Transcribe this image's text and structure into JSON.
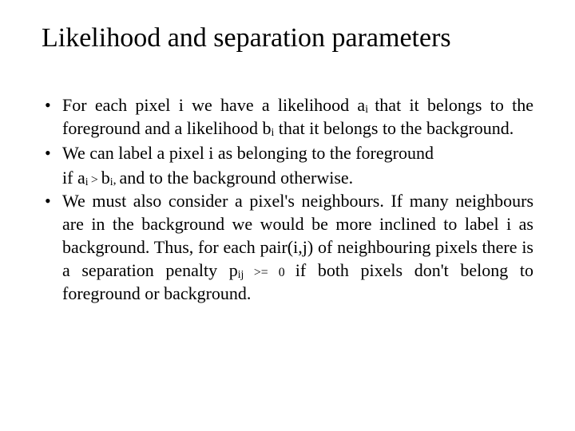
{
  "title": "Likelihood and separation parameters",
  "typography": {
    "title_fontsize_pt": 26,
    "body_fontsize_pt": 17,
    "font_family": "Times New Roman / Georgia serif",
    "text_color": "#000000",
    "background_color": "#ffffff",
    "text_align_body": "justify"
  },
  "bullets": [
    {
      "pre1": "For each pixel i we have a likelihood a",
      "sub1": "i ",
      "mid1": "that it belongs to the foreground and a likelihood b",
      "sub2": "i",
      "post1": " that it belongs to the background."
    },
    {
      "line1": "We can label a pixel i as belonging to the foreground",
      "line2_pre": "if a",
      "line2_sub1": "i ",
      "line2_gt": "> ",
      "line2_b": "b",
      "line2_sub2": "i",
      "line2_comma": ", ",
      "line2_post": "and to the background otherwise."
    },
    {
      "pre": "We must also consider a pixel's neighbours. If many neighbours are in the background we would be more inclined to label i as background. Thus, for each pair(i,j) of neighbouring pixels there is a separation penalty p",
      "sub": "ij ",
      "ge": ">= 0 ",
      "post": "if both pixels don't belong to foreground or background."
    }
  ]
}
